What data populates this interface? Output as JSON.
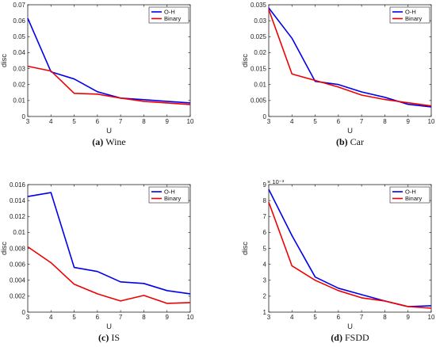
{
  "chart_data": [
    {
      "type": "line",
      "caption_label": "(a)",
      "caption_text": "Wine",
      "xlabel": "U",
      "ylabel": "disc",
      "xlim": [
        3,
        10
      ],
      "ylim": [
        0,
        0.07
      ],
      "xticks": [
        "3",
        "4",
        "5",
        "6",
        "7",
        "8",
        "9",
        "10"
      ],
      "yticks": [
        "0",
        "0.01",
        "0.02",
        "0.03",
        "0.04",
        "0.05",
        "0.06",
        "0.07"
      ],
      "legend_position": "top-right",
      "x": [
        3,
        4,
        5,
        6,
        7,
        8,
        9,
        10
      ],
      "series": [
        {
          "name": "O-H",
          "color": "#0000ee",
          "values": [
            0.0615,
            0.028,
            0.0235,
            0.0155,
            0.0115,
            0.0105,
            0.0095,
            0.0085
          ]
        },
        {
          "name": "Binary",
          "color": "#ee0000",
          "values": [
            0.0315,
            0.0285,
            0.0145,
            0.014,
            0.0115,
            0.0095,
            0.0085,
            0.0075
          ]
        }
      ]
    },
    {
      "type": "line",
      "caption_label": "(b)",
      "caption_text": "Car",
      "xlabel": "U",
      "ylabel": "disc",
      "xlim": [
        3,
        10
      ],
      "ylim": [
        0,
        0.035
      ],
      "xticks": [
        "3",
        "4",
        "5",
        "6",
        "7",
        "8",
        "9",
        "10"
      ],
      "yticks": [
        "0",
        "0.005",
        "0.01",
        "0.015",
        "0.02",
        "0.025",
        "0.03",
        "0.035"
      ],
      "legend_position": "top-right",
      "x": [
        3,
        4,
        5,
        6,
        7,
        8,
        9,
        10
      ],
      "series": [
        {
          "name": "O-H",
          "color": "#0000ee",
          "values": [
            0.034,
            0.0245,
            0.011,
            0.01,
            0.0077,
            0.006,
            0.0038,
            0.003
          ]
        },
        {
          "name": "Binary",
          "color": "#ee0000",
          "values": [
            0.0335,
            0.0133,
            0.0113,
            0.0092,
            0.0067,
            0.0053,
            0.0043,
            0.0033
          ]
        }
      ]
    },
    {
      "type": "line",
      "caption_label": "(c)",
      "caption_text": "IS",
      "xlabel": "U",
      "ylabel": "disc",
      "xlim": [
        3,
        10
      ],
      "ylim": [
        0,
        0.016
      ],
      "xticks": [
        "3",
        "4",
        "5",
        "6",
        "7",
        "8",
        "9",
        "10"
      ],
      "yticks": [
        "0",
        "0.002",
        "0.004",
        "0.006",
        "0.008",
        "0.01",
        "0.012",
        "0.014",
        "0.016"
      ],
      "legend_position": "top-right",
      "x": [
        3,
        4,
        5,
        6,
        7,
        8,
        9,
        10
      ],
      "series": [
        {
          "name": "O-H",
          "color": "#0000ee",
          "values": [
            0.0145,
            0.015,
            0.0056,
            0.0051,
            0.0038,
            0.0036,
            0.0027,
            0.0023
          ]
        },
        {
          "name": "Binary",
          "color": "#ee0000",
          "values": [
            0.0082,
            0.0062,
            0.0035,
            0.0023,
            0.0014,
            0.0021,
            0.0011,
            0.0012
          ]
        }
      ]
    },
    {
      "type": "line",
      "caption_label": "(d)",
      "caption_text": "FSDD",
      "xlabel": "U",
      "ylabel": "disc",
      "exponent_label": "× 10⁻³",
      "xlim": [
        3,
        10
      ],
      "ylim": [
        1,
        9
      ],
      "xticks": [
        "3",
        "4",
        "5",
        "6",
        "7",
        "8",
        "9",
        "10"
      ],
      "yticks": [
        "1",
        "2",
        "3",
        "4",
        "5",
        "6",
        "7",
        "8",
        "9"
      ],
      "legend_position": "top-right",
      "x": [
        3,
        4,
        5,
        6,
        7,
        8,
        9,
        10
      ],
      "series": [
        {
          "name": "O-H",
          "color": "#0000ee",
          "values": [
            8.7,
            5.8,
            3.2,
            2.5,
            2.1,
            1.7,
            1.35,
            1.4
          ]
        },
        {
          "name": "Binary",
          "color": "#ee0000",
          "values": [
            7.9,
            3.9,
            3.0,
            2.35,
            1.9,
            1.7,
            1.35,
            1.25
          ]
        }
      ]
    }
  ]
}
